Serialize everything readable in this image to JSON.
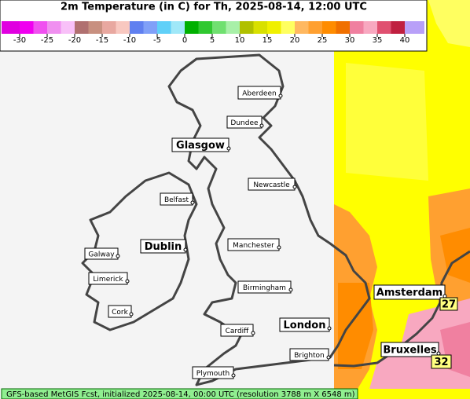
{
  "title": "2m Temperature (in C) for Th, 2025-08-14, 12:00 UTC",
  "colorbar": {
    "ticks": [
      -30,
      -25,
      -20,
      -15,
      -10,
      -5,
      0,
      5,
      10,
      15,
      20,
      25,
      30,
      35,
      40
    ],
    "colors": [
      "#e000e0",
      "#f000f0",
      "#f050f0",
      "#f090f0",
      "#f8c0f8",
      "#b07070",
      "#c89080",
      "#e8a8a0",
      "#f8c8c0",
      "#6080f0",
      "#80a0f8",
      "#60d0f8",
      "#a0e8f8",
      "#00b000",
      "#30c830",
      "#70e070",
      "#a8f0a8",
      "#b0c000",
      "#d8e000",
      "#f0f000",
      "#ffff60",
      "#ffb860",
      "#ffa030",
      "#ff8c00",
      "#f07000",
      "#f080a0",
      "#f8a8c0",
      "#e05070",
      "#c02040",
      "#b8a0f8"
    ]
  },
  "cities": [
    "Aberdeen",
    "Dundee",
    "Glasgow",
    "Newcastle",
    "Belfast",
    "Dublin",
    "Galway",
    "Limerick",
    "Manchester",
    "Birmingham",
    "Cork",
    "Cardiff",
    "London",
    "Brighton",
    "Plymouth",
    "Amsterdam",
    "Bruxelles"
  ],
  "temperature_labels": [
    27,
    32
  ],
  "footer": "GFS-based MetGIS Fcst, initialized 2025-08-14, 00:00 UTC  (resolution 3788 m X 6548 m)"
}
